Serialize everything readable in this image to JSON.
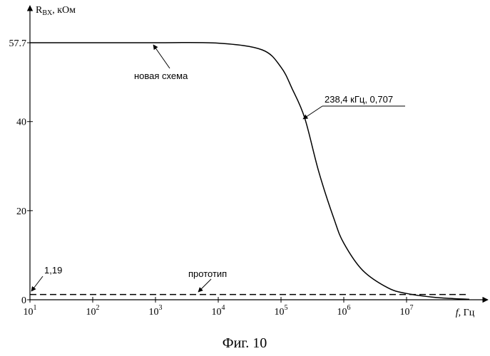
{
  "chart_data": {
    "type": "line",
    "xscale": "log",
    "xlim": [
      10,
      100000000
    ],
    "ylim": [
      0,
      57.7
    ],
    "y_ticks": [
      0,
      20,
      40,
      57.7
    ],
    "y_tick_labels": [
      "0",
      "20",
      "40",
      "57.7"
    ],
    "x_ticks": [
      10,
      100,
      1000,
      10000,
      100000,
      1000000,
      10000000
    ],
    "x_tick_labels": [
      {
        "base": "10",
        "exp": "1"
      },
      {
        "base": "10",
        "exp": "2"
      },
      {
        "base": "10",
        "exp": "3"
      },
      {
        "base": "10",
        "exp": "4"
      },
      {
        "base": "10",
        "exp": "5"
      },
      {
        "base": "10",
        "exp": "6"
      },
      {
        "base": "10",
        "exp": "7"
      }
    ],
    "ylabel": {
      "main": "R",
      "sub": "BX",
      "rest": ", кОм"
    },
    "xlabel": {
      "italic": "f",
      "rest": ", Гц"
    },
    "series": [
      {
        "name": "новая схема",
        "style": "solid",
        "x": [
          10,
          100,
          1000,
          10000,
          50000,
          100000,
          150000,
          238400,
          400000,
          700000,
          1000000,
          2000000,
          5000000,
          10000000,
          30000000,
          100000000
        ],
        "y": [
          57.7,
          57.7,
          57.7,
          57.6,
          56.1,
          52.2,
          47.4,
          40.8,
          28.7,
          18.1,
          12.7,
          6.6,
          2.7,
          1.4,
          0.5,
          0.1
        ]
      },
      {
        "name": "прототип",
        "style": "dashed",
        "x": [
          10,
          100000000
        ],
        "y": [
          1.19,
          1.19
        ]
      }
    ],
    "annotations": [
      {
        "text": "новая схема",
        "point": [
          1000,
          57.7
        ]
      },
      {
        "text": "238,4 кГц, 0,707",
        "point": [
          238400,
          40.8
        ]
      },
      {
        "text": "прототип",
        "point": [
          5000,
          1.19
        ]
      },
      {
        "text": "1,19",
        "point": [
          10,
          1.19
        ]
      }
    ],
    "caption": "Фиг. 10",
    "grid": false,
    "legend": "none",
    "line_color": "#000000"
  }
}
